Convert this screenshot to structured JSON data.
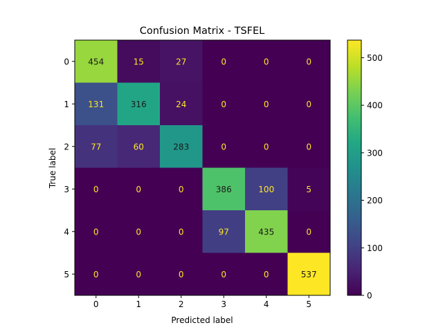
{
  "chart_data": {
    "type": "heatmap",
    "title": "Confusion Matrix - TSFEL",
    "xlabel": "Predicted label",
    "ylabel": "True label",
    "x_categories": [
      "0",
      "1",
      "2",
      "3",
      "4",
      "5"
    ],
    "y_categories": [
      "0",
      "1",
      "2",
      "3",
      "4",
      "5"
    ],
    "values": [
      [
        454,
        15,
        27,
        0,
        0,
        0
      ],
      [
        131,
        316,
        24,
        0,
        0,
        0
      ],
      [
        77,
        60,
        283,
        0,
        0,
        0
      ],
      [
        0,
        0,
        0,
        386,
        100,
        5
      ],
      [
        0,
        0,
        0,
        97,
        435,
        0
      ],
      [
        0,
        0,
        0,
        0,
        0,
        537
      ]
    ],
    "colormap": "viridis",
    "colorbar": {
      "range": [
        0,
        537
      ],
      "ticks": [
        0,
        100,
        200,
        300,
        400,
        500
      ]
    },
    "text_colors": {
      "dark_cell": "#fde725",
      "light_cell": "#1a1a1a"
    },
    "grid": false
  }
}
